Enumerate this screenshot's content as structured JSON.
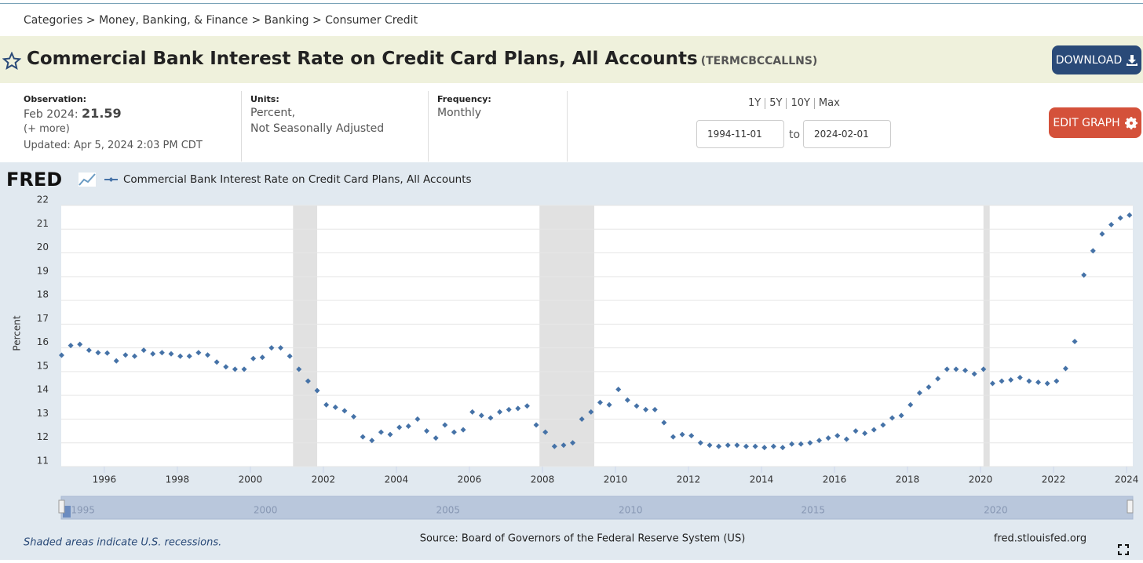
{
  "breadcrumb": "Categories > Money, Banking, & Finance > Banking > Consumer Credit",
  "header": {
    "title": "Commercial Bank Interest Rate on Credit Card Plans, All Accounts",
    "series_id": "(TERMCBCCALLNS)",
    "download": "DOWNLOAD"
  },
  "info": {
    "observation_label": "Observation:",
    "observation_date": "Feb 2024:",
    "observation_value": 21.59,
    "more": "(+ more)",
    "updated": "Updated: Apr 5, 2024 2:03 PM CDT",
    "units_label": "Units:",
    "units": [
      "Percent,",
      "Not Seasonally Adjusted"
    ],
    "frequency_label": "Frequency:",
    "frequency": "Monthly",
    "ranges": [
      "1Y",
      "5Y",
      "10Y",
      "Max"
    ],
    "start": "1994-11-01",
    "to": "to",
    "end": "2024-02-01",
    "edit": "EDIT GRAPH"
  },
  "chart_data": {
    "type": "scatter",
    "logo": "FRED",
    "y_label": "Percent",
    "x": [
      1994.83,
      1995.08,
      1995.33,
      1995.58,
      1995.83,
      1996.08,
      1996.33,
      1996.58,
      1996.83,
      1997.08,
      1997.33,
      1997.58,
      1997.83,
      1998.08,
      1998.33,
      1998.58,
      1998.83,
      1999.08,
      1999.33,
      1999.58,
      1999.83,
      2000.08,
      2000.33,
      2000.58,
      2000.83,
      2001.08,
      2001.33,
      2001.58,
      2001.83,
      2002.08,
      2002.33,
      2002.58,
      2002.83,
      2003.08,
      2003.33,
      2003.58,
      2003.83,
      2004.08,
      2004.33,
      2004.58,
      2004.83,
      2005.08,
      2005.33,
      2005.58,
      2005.83,
      2006.08,
      2006.33,
      2006.58,
      2006.83,
      2007.08,
      2007.33,
      2007.58,
      2007.83,
      2008.08,
      2008.33,
      2008.58,
      2008.83,
      2009.08,
      2009.33,
      2009.58,
      2009.83,
      2010.08,
      2010.33,
      2010.58,
      2010.83,
      2011.08,
      2011.33,
      2011.58,
      2011.83,
      2012.08,
      2012.33,
      2012.58,
      2012.83,
      2013.08,
      2013.33,
      2013.58,
      2013.83,
      2014.08,
      2014.33,
      2014.58,
      2014.83,
      2015.08,
      2015.33,
      2015.58,
      2015.83,
      2016.08,
      2016.33,
      2016.58,
      2016.83,
      2017.08,
      2017.33,
      2017.58,
      2017.83,
      2018.08,
      2018.33,
      2018.58,
      2018.83,
      2019.08,
      2019.33,
      2019.58,
      2019.83,
      2020.08,
      2020.33,
      2020.58,
      2020.83,
      2021.08,
      2021.33,
      2021.58,
      2021.83,
      2022.08,
      2022.33,
      2022.58,
      2022.83,
      2023.08,
      2023.33,
      2023.58,
      2023.83,
      2024.08
    ],
    "series": [
      {
        "name": "Commercial Bank Interest Rate on Credit Card Plans, All Accounts",
        "color": "#4572a7",
        "values": [
          15.69,
          16.1,
          16.15,
          15.9,
          15.8,
          15.78,
          15.45,
          15.7,
          15.65,
          15.9,
          15.75,
          15.8,
          15.75,
          15.65,
          15.65,
          15.8,
          15.7,
          15.4,
          15.2,
          15.1,
          15.1,
          15.55,
          15.6,
          16.0,
          16.0,
          15.65,
          15.1,
          14.6,
          14.2,
          13.6,
          13.5,
          13.35,
          13.1,
          12.25,
          12.1,
          12.45,
          12.35,
          12.65,
          12.7,
          13.0,
          12.5,
          12.2,
          12.75,
          12.45,
          12.55,
          13.3,
          13.15,
          13.05,
          13.3,
          13.4,
          13.45,
          13.55,
          12.75,
          12.45,
          11.85,
          11.9,
          12.0,
          13.0,
          13.3,
          13.7,
          13.6,
          14.25,
          13.8,
          13.55,
          13.4,
          13.4,
          12.85,
          12.25,
          12.35,
          12.3,
          12.0,
          11.9,
          11.85,
          11.9,
          11.9,
          11.85,
          11.85,
          11.8,
          11.85,
          11.8,
          11.95,
          11.95,
          12.0,
          12.1,
          12.2,
          12.3,
          12.15,
          12.5,
          12.4,
          12.55,
          12.75,
          13.05,
          13.15,
          13.6,
          14.1,
          14.35,
          14.7,
          15.1,
          15.1,
          15.05,
          14.9,
          15.1,
          14.5,
          14.6,
          14.65,
          14.75,
          14.6,
          14.55,
          14.5,
          14.6,
          15.13,
          16.27,
          19.07,
          20.09,
          20.8,
          21.19,
          21.47,
          21.59
        ]
      }
    ],
    "xlim": [
      1994.82,
      2024.17
    ],
    "xticks": [
      1996,
      1998,
      2000,
      2002,
      2004,
      2006,
      2008,
      2010,
      2012,
      2014,
      2016,
      2018,
      2020,
      2022,
      2024
    ],
    "ylim": [
      11,
      22
    ],
    "yticks": [
      11,
      12,
      13,
      14,
      15,
      16,
      17,
      18,
      19,
      20,
      21,
      22
    ],
    "grid": true,
    "recessions": [
      [
        2001.17,
        2001.83
      ],
      [
        2007.92,
        2009.42
      ],
      [
        2020.08,
        2020.25
      ]
    ],
    "navigator_ticks": [
      1995,
      2000,
      2005,
      2010,
      2015,
      2020
    ],
    "note": "Shaded areas indicate U.S. recessions.",
    "source": "Source: Board of Governors of the Federal Reserve System (US)",
    "site": "fred.stlouisfed.org"
  }
}
